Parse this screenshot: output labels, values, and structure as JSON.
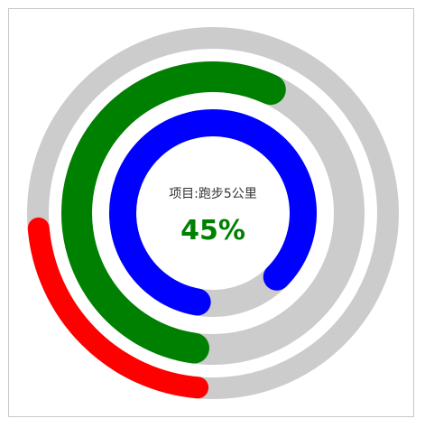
{
  "chart_data": {
    "type": "radial_progress",
    "center_label": "项目:跑步5公里",
    "center_value": "45%",
    "center_value_color": "#008000",
    "track_color": "#cccccc",
    "rings": [
      {
        "ring": "outer",
        "color": "#ff0000",
        "start_deg": 95,
        "end_deg": 175
      },
      {
        "ring": "middle",
        "color": "#008000",
        "start_deg": 98,
        "end_deg": 295
      },
      {
        "ring": "inner",
        "color": "#0000ff",
        "start_deg": 100,
        "end_deg": 405
      }
    ]
  }
}
